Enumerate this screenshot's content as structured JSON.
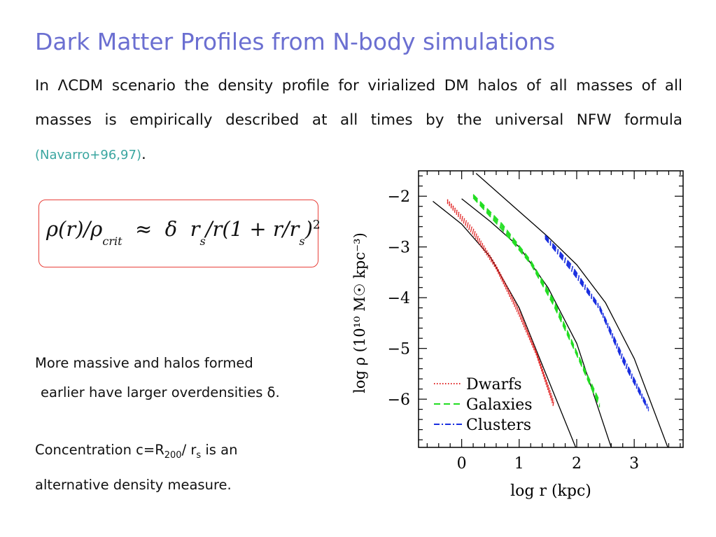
{
  "slide": {
    "title": "Dark Matter Profiles from N-body simulations",
    "intro": "In ΛCDM scenario the density profile for virialized DM halos of all masses of all masses is empirically described at all times by the universal NFW formula",
    "citation": "Navarro+96,97",
    "equation": {
      "lhs_rho": "ρ(r)/ρ",
      "lhs_sub": "crit",
      "approx": "≈",
      "delta": "δ",
      "rs": "r",
      "rs_sub": "s",
      "mid": "/r(1 + r/r",
      "rs2_sub": "s",
      "close": ")",
      "power": "2"
    },
    "note_massive_line1": "More massive and halos formed",
    "note_massive_line2": "earlier have larger overdensities δ.",
    "note_conc_a": "Concentration c=R",
    "note_conc_sub": "200",
    "note_conc_b": "/ r",
    "note_conc_sub2": "s",
    "note_conc_c": "is an",
    "note_conc_line2": "alternative density measure."
  },
  "colors": {
    "title": "#6b6fd1",
    "citation": "#3aa6a0",
    "box_border": "#e8403a",
    "dwarfs": "#e02020",
    "galaxies": "#22dd22",
    "clusters": "#1a2fe0"
  },
  "chart_data": {
    "type": "line",
    "xlabel": "log r (kpc)",
    "ylabel": "log ρ (10¹⁰ M☉ kpc⁻³)",
    "xlim": [
      -0.75,
      3.85
    ],
    "ylim": [
      -6.95,
      -1.5
    ],
    "xticks": [
      0,
      1,
      2,
      3
    ],
    "yticks": [
      -2,
      -3,
      -4,
      -5,
      -6
    ],
    "legend_position": "bottom-left",
    "series": [
      {
        "name": "Dwarfs",
        "style": "dotted",
        "color": "#e02020",
        "x": [
          -0.25,
          0.2,
          0.6,
          1.0,
          1.3,
          1.6
        ],
        "y": [
          -2.1,
          -2.7,
          -3.4,
          -4.3,
          -5.1,
          -6.1
        ]
      },
      {
        "name": "Galaxies",
        "style": "dashed",
        "color": "#22dd22",
        "x": [
          0.2,
          0.7,
          1.2,
          1.6,
          2.0,
          2.4
        ],
        "y": [
          -2.0,
          -2.6,
          -3.3,
          -4.1,
          -5.1,
          -6.1
        ]
      },
      {
        "name": "Clusters",
        "style": "dashdot",
        "color": "#1a2fe0",
        "x": [
          1.45,
          1.9,
          2.4,
          2.8,
          3.25
        ],
        "y": [
          -2.8,
          -3.4,
          -4.2,
          -5.2,
          -6.2
        ]
      }
    ],
    "nfw_fits": [
      {
        "x": [
          -0.5,
          0.0,
          0.5,
          1.0,
          1.5,
          2.0
        ],
        "y": [
          -2.1,
          -2.55,
          -3.2,
          -4.2,
          -5.6,
          -7.0
        ]
      },
      {
        "x": [
          0.0,
          0.5,
          1.0,
          1.5,
          2.0,
          2.6
        ],
        "y": [
          -2.05,
          -2.5,
          -3.0,
          -3.8,
          -4.9,
          -6.95
        ]
      },
      {
        "x": [
          0.25,
          1.0,
          1.5,
          2.0,
          2.5,
          3.0,
          3.6
        ],
        "y": [
          -1.55,
          -2.3,
          -2.8,
          -3.35,
          -4.1,
          -5.2,
          -7.0
        ]
      }
    ]
  }
}
